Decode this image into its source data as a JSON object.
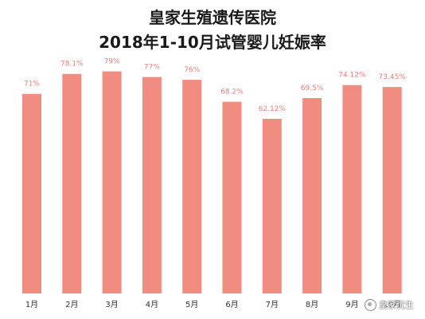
{
  "chart_data": {
    "type": "bar",
    "title": "皇家生殖遗传医院",
    "subtitle": "2018年1-10月试管婴儿妊娠率",
    "categories": [
      "1月",
      "2月",
      "3月",
      "4月",
      "5月",
      "6月",
      "7月",
      "8月",
      "9月",
      "10月"
    ],
    "values": [
      71,
      78.1,
      79,
      77,
      76,
      68.2,
      62.12,
      69.5,
      74.12,
      73.45
    ],
    "value_labels": [
      "71%",
      "78.1%",
      "79%",
      "77%",
      "76%",
      "68.2%",
      "62.12%",
      "69.5%",
      "74.12%",
      "73.45%"
    ],
    "ylim": [
      0,
      80
    ],
    "grid": false,
    "bar_color": "#f08c80",
    "label_color": "#e8807a"
  },
  "watermark": {
    "text": "皇家优生",
    "icon": "wechat-logo-icon"
  }
}
